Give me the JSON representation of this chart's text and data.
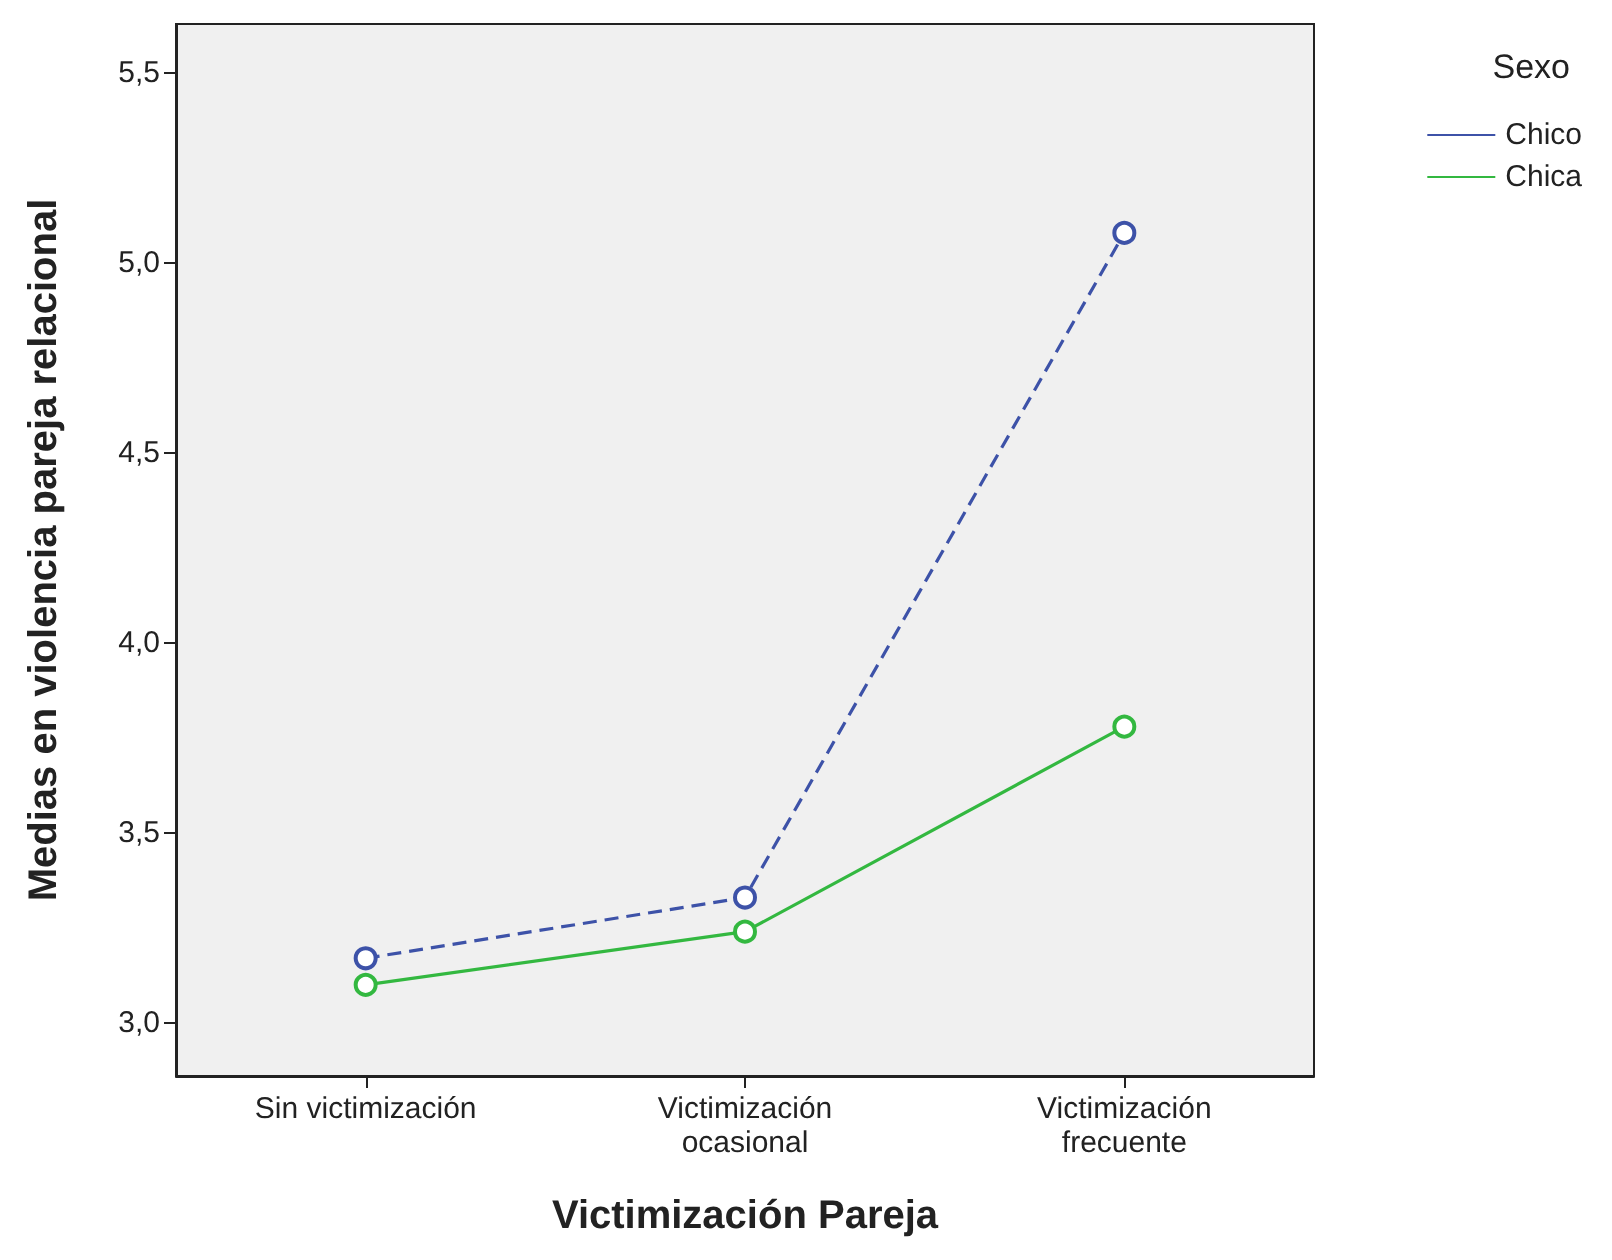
{
  "chart_data": {
    "type": "line",
    "xlabel": "Victimización Pareja",
    "ylabel": "Medias en violencia pareja relacional",
    "legend_title": "Sexo",
    "categories": [
      "Sin victimización",
      "Victimización\nocasional",
      "Victimización\nfrecuente"
    ],
    "series": [
      {
        "name": "Chico",
        "color": "#3d52a8",
        "line_style": "dashed",
        "values": [
          3.17,
          3.33,
          5.08
        ]
      },
      {
        "name": "Chica",
        "color": "#33b840",
        "line_style": "solid",
        "values": [
          3.1,
          3.24,
          3.78
        ]
      }
    ],
    "ylim": [
      2.86,
      5.63
    ],
    "yticks": [
      {
        "value": 3.0,
        "label": "3,0"
      },
      {
        "value": 3.5,
        "label": "3,5"
      },
      {
        "value": 4.0,
        "label": "4,0"
      },
      {
        "value": 4.5,
        "label": "4,5"
      },
      {
        "value": 5.0,
        "label": "5,0"
      },
      {
        "value": 5.5,
        "label": "5,5"
      }
    ],
    "grid": false,
    "legend": "top right",
    "marker": "circle"
  }
}
